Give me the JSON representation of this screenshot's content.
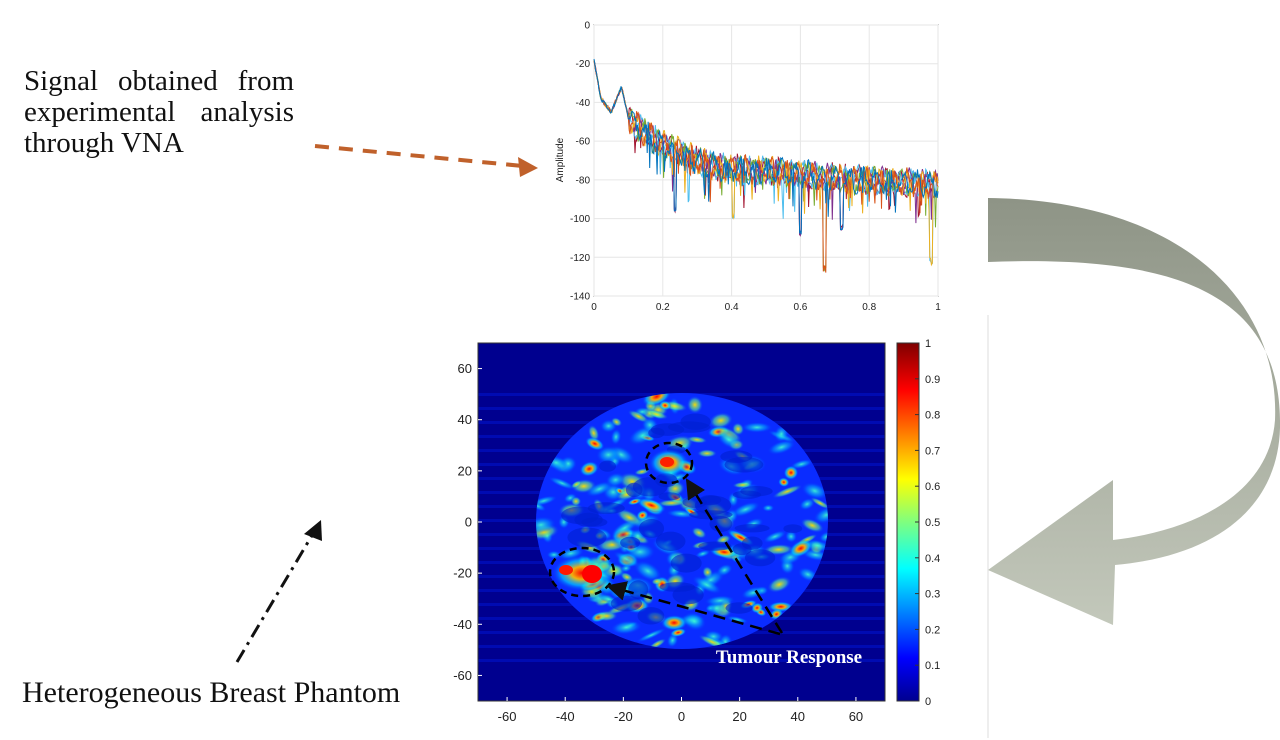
{
  "annotations": {
    "signal_description": "Signal obtained from experimental analysis through VNA",
    "phantom_label": "Heterogeneous Breast Phantom",
    "tumour_label": "Tumour Response"
  },
  "colors": {
    "dashed_arrow": "#c0612b",
    "curved_arrow_top": "#8e9486",
    "curved_arrow_bottom": "#c3c8bb",
    "image_background": "#00008f",
    "tumour_label": "#ffffff"
  },
  "chart_data": [
    {
      "type": "line",
      "title": "",
      "xlabel": "",
      "ylabel": "Amplitude",
      "xlim": [
        0,
        1
      ],
      "ylim": [
        -140,
        0
      ],
      "xticks": [
        "0",
        "0.2",
        "0.4",
        "0.6",
        "0.8",
        "1"
      ],
      "yticks": [
        "0",
        "-20",
        "-40",
        "-60",
        "-80",
        "-100",
        "-120",
        "-140"
      ],
      "grid": true,
      "series_count": 7,
      "series_colors": [
        "#0072bd",
        "#d95319",
        "#edb120",
        "#7e2f8e",
        "#77ac30",
        "#4dbeee",
        "#a2142f"
      ],
      "envelope": {
        "x": [
          0,
          0.02,
          0.05,
          0.08,
          0.1,
          0.15,
          0.2,
          0.25,
          0.3,
          0.35,
          0.4,
          0.45,
          0.5,
          0.55,
          0.6,
          0.65,
          0.7,
          0.75,
          0.8,
          0.85,
          0.9,
          0.95,
          1.0
        ],
        "y": [
          -18,
          -38,
          -45,
          -32,
          -48,
          -56,
          -62,
          -66,
          -70,
          -73,
          -74,
          -75,
          -75,
          -76,
          -77,
          -78,
          -79,
          -80,
          -80,
          -81,
          -81,
          -82,
          -83
        ]
      },
      "deep_notches": [
        {
          "x": 0.235,
          "y": -97
        },
        {
          "x": 0.405,
          "y": -100
        },
        {
          "x": 0.6,
          "y": -109
        },
        {
          "x": 0.67,
          "y": -128
        },
        {
          "x": 0.72,
          "y": -106
        },
        {
          "x": 0.98,
          "y": -124
        }
      ]
    },
    {
      "type": "heatmap",
      "title": "",
      "xlabel": "",
      "ylabel": "",
      "xlim": [
        -70,
        70
      ],
      "ylim": [
        -70,
        70
      ],
      "xticks": [
        "-60",
        "-40",
        "-20",
        "0",
        "20",
        "40",
        "60"
      ],
      "yticks": [
        "60",
        "40",
        "20",
        "0",
        "-20",
        "-40",
        "-60"
      ],
      "colormap": "jet",
      "colorbar_range": [
        0,
        1
      ],
      "colorbar_ticks": [
        "1",
        "0.9",
        "0.8",
        "0.7",
        "0.6",
        "0.5",
        "0.4",
        "0.3",
        "0.2",
        "0.1",
        "0"
      ],
      "phantom_center": [
        0,
        0
      ],
      "phantom_radius": 50,
      "tumour_regions": [
        {
          "x": -4,
          "y": 22,
          "value": 0.95
        },
        {
          "x": -35,
          "y": -20,
          "value": 1.0
        }
      ]
    }
  ]
}
